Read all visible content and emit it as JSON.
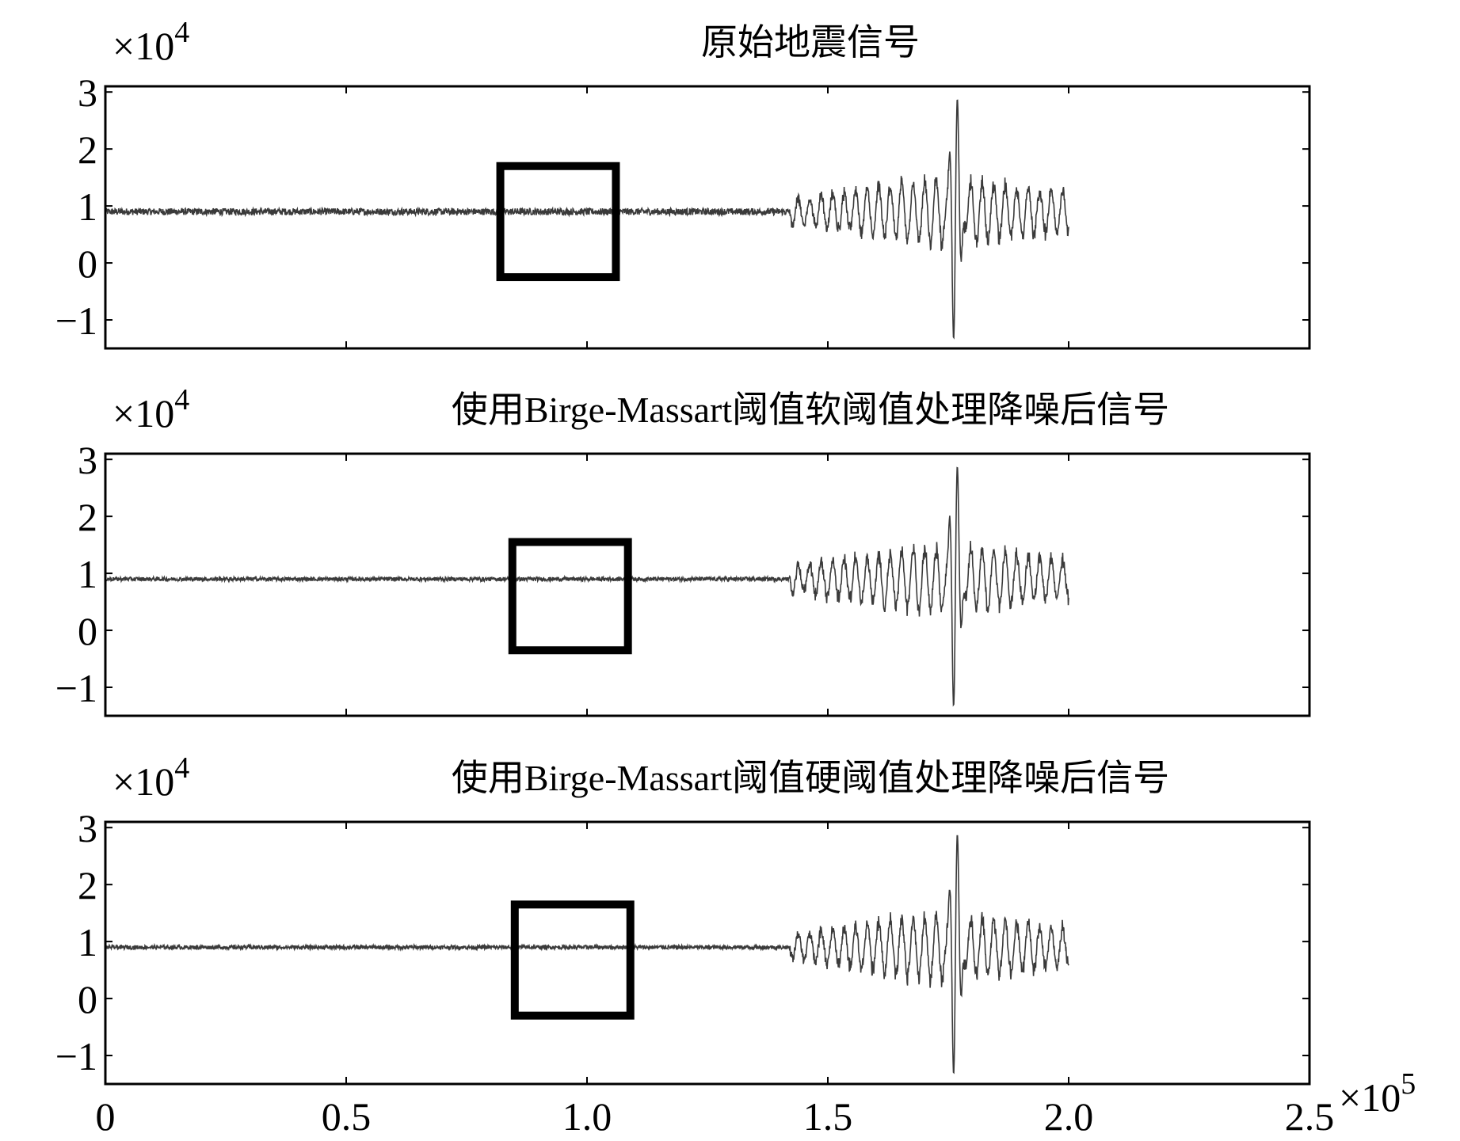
{
  "chart_data": [
    {
      "type": "line",
      "title": "原始地震信号",
      "xlabel": "",
      "ylabel": "",
      "y_multiplier_label": "×10",
      "y_multiplier_exp": "4",
      "xlim": [
        0,
        250000
      ],
      "ylim": [
        -15000,
        31000
      ],
      "yticks": [
        -10000,
        0,
        10000,
        20000,
        30000
      ],
      "ytick_labels": [
        "−1",
        "0",
        "1",
        "2",
        "3"
      ],
      "xticks": [
        0,
        50000,
        100000,
        150000,
        200000,
        250000
      ],
      "xtick_labels": [
        "",
        "",
        "",
        "",
        "",
        ""
      ],
      "grid": false,
      "signal": {
        "baseline": 9000,
        "end_x": 200000,
        "peak_x": 176500,
        "peak_max": 30500,
        "peak_min": -15000,
        "noise_amp": 600
      },
      "highlight_box": {
        "x": [
          82000,
          106000
        ],
        "y": [
          -2500,
          17000
        ]
      }
    },
    {
      "type": "line",
      "title": "使用Birge-Massart阈值软阈值处理降噪后信号",
      "xlabel": "",
      "ylabel": "",
      "y_multiplier_label": "×10",
      "y_multiplier_exp": "4",
      "xlim": [
        0,
        250000
      ],
      "ylim": [
        -15000,
        31000
      ],
      "yticks": [
        -10000,
        0,
        10000,
        20000,
        30000
      ],
      "ytick_labels": [
        "−1",
        "0",
        "1",
        "2",
        "3"
      ],
      "xticks": [
        0,
        50000,
        100000,
        150000,
        200000,
        250000
      ],
      "xtick_labels": [
        "",
        "",
        "",
        "",
        "",
        ""
      ],
      "grid": false,
      "signal": {
        "baseline": 9000,
        "end_x": 200000,
        "peak_x": 176500,
        "peak_max": 30500,
        "peak_min": -15000,
        "noise_amp": 350
      },
      "highlight_box": {
        "x": [
          84500,
          108500
        ],
        "y": [
          -3500,
          15500
        ]
      }
    },
    {
      "type": "line",
      "title": "使用Birge-Massart阈值硬阈值处理降噪后信号",
      "xlabel": "",
      "ylabel": "",
      "y_multiplier_label": "×10",
      "y_multiplier_exp": "4",
      "xlim": [
        0,
        250000
      ],
      "ylim": [
        -15000,
        31000
      ],
      "yticks": [
        -10000,
        0,
        10000,
        20000,
        30000
      ],
      "ytick_labels": [
        "−1",
        "0",
        "1",
        "2",
        "3"
      ],
      "xticks": [
        0,
        50000,
        100000,
        150000,
        200000,
        250000
      ],
      "xtick_labels": [
        "0",
        "0.5",
        "1.0",
        "1.5",
        "2.0",
        "2.5"
      ],
      "x_multiplier_label": "×10",
      "x_multiplier_exp": "5",
      "grid": false,
      "signal": {
        "baseline": 9000,
        "end_x": 200000,
        "peak_x": 176500,
        "peak_max": 30500,
        "peak_min": -15000,
        "noise_amp": 350
      },
      "highlight_box": {
        "x": [
          85000,
          109000
        ],
        "y": [
          -3000,
          16500
        ]
      }
    }
  ]
}
